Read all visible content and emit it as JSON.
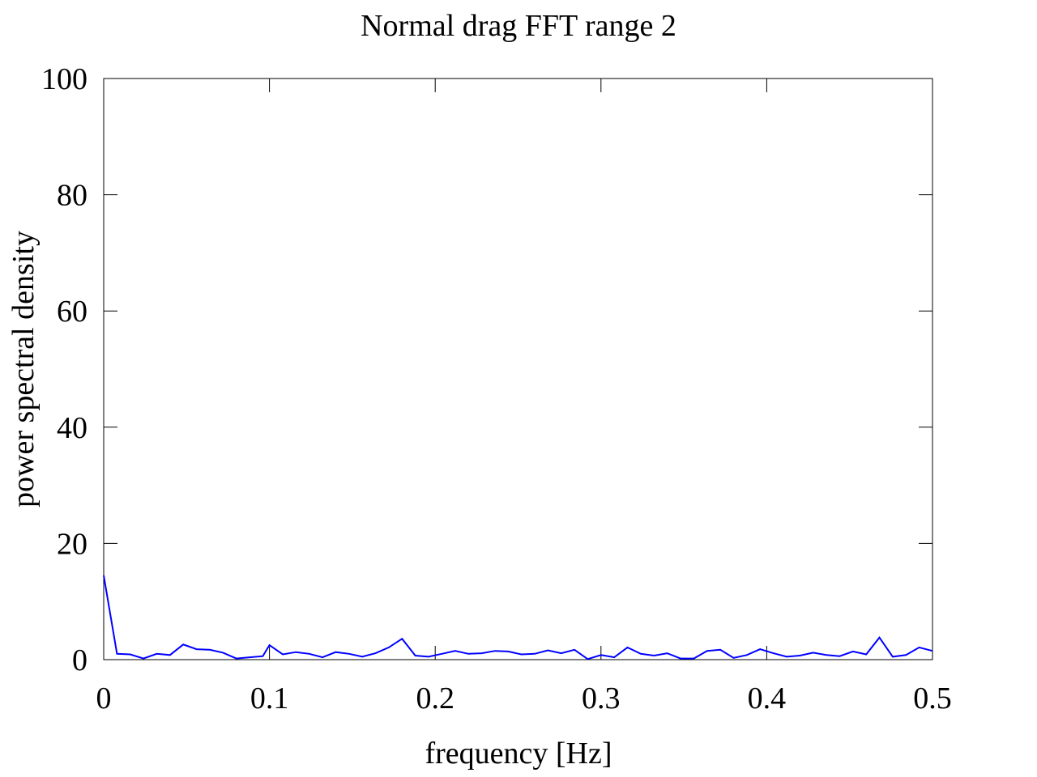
{
  "chart_data": {
    "type": "line",
    "title": "Normal drag FFT range 2",
    "xlabel": "frequency [Hz]",
    "ylabel": "power spectral density",
    "xlim": [
      0,
      0.5
    ],
    "ylim": [
      0,
      100
    ],
    "x_ticks": [
      "0",
      "0.1",
      "0.2",
      "0.3",
      "0.4",
      "0.5"
    ],
    "y_ticks": [
      "0",
      "20",
      "40",
      "60",
      "80",
      "100"
    ],
    "grid": false,
    "legend": "none",
    "series": [
      {
        "color": "#0000ff",
        "x": [
          0.0,
          0.008,
          0.016,
          0.024,
          0.032,
          0.04,
          0.048,
          0.056,
          0.064,
          0.072,
          0.08,
          0.088,
          0.096,
          0.1,
          0.108,
          0.116,
          0.124,
          0.132,
          0.14,
          0.148,
          0.156,
          0.164,
          0.172,
          0.18,
          0.188,
          0.196,
          0.204,
          0.212,
          0.22,
          0.228,
          0.236,
          0.244,
          0.252,
          0.26,
          0.268,
          0.276,
          0.284,
          0.292,
          0.3,
          0.308,
          0.316,
          0.324,
          0.332,
          0.34,
          0.348,
          0.356,
          0.364,
          0.372,
          0.38,
          0.388,
          0.396,
          0.404,
          0.412,
          0.42,
          0.428,
          0.436,
          0.444,
          0.452,
          0.46,
          0.468,
          0.476,
          0.484,
          0.492,
          0.5
        ],
        "y": [
          14.5,
          1.0,
          0.9,
          0.2,
          1.0,
          0.8,
          2.6,
          1.8,
          1.7,
          1.2,
          0.2,
          0.4,
          0.6,
          2.5,
          0.9,
          1.3,
          1.0,
          0.4,
          1.3,
          1.0,
          0.5,
          1.1,
          2.1,
          3.6,
          0.7,
          0.5,
          1.0,
          1.5,
          1.0,
          1.1,
          1.5,
          1.4,
          0.9,
          1.0,
          1.6,
          1.1,
          1.7,
          0.1,
          0.8,
          0.4,
          2.1,
          1.0,
          0.7,
          1.1,
          0.2,
          0.2,
          1.5,
          1.7,
          0.3,
          0.8,
          1.8,
          1.1,
          0.5,
          0.7,
          1.2,
          0.8,
          0.6,
          1.4,
          0.9,
          3.8,
          0.5,
          0.8,
          2.1,
          1.5
        ]
      }
    ]
  }
}
